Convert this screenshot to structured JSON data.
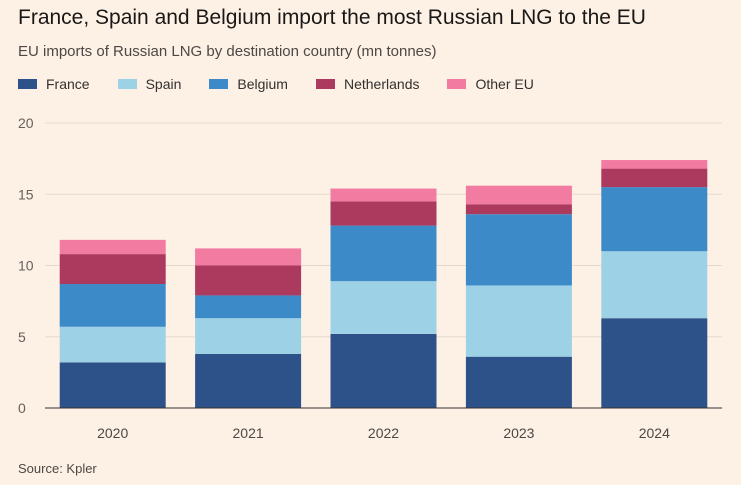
{
  "title": "France, Spain and Belgium import the most Russian LNG to the EU",
  "subtitle": "EU imports of Russian LNG by destination country (mn tonnes)",
  "source": "Source: Kpler",
  "chart_data": {
    "type": "bar",
    "stacked": true,
    "categories": [
      "2020",
      "2021",
      "2022",
      "2023",
      "2024"
    ],
    "series": [
      {
        "name": "France",
        "color": "#2d5289",
        "values": [
          3.2,
          3.8,
          5.2,
          3.6,
          6.3
        ]
      },
      {
        "name": "Spain",
        "color": "#9dd2e6",
        "values": [
          2.5,
          2.5,
          3.7,
          5.0,
          4.7
        ]
      },
      {
        "name": "Belgium",
        "color": "#3d8ac9",
        "values": [
          3.0,
          1.6,
          3.9,
          5.0,
          4.5
        ]
      },
      {
        "name": "Netherlands",
        "color": "#ac395e",
        "values": [
          2.1,
          2.1,
          1.7,
          0.7,
          1.3
        ]
      },
      {
        "name": "Other EU",
        "color": "#f27ba2",
        "values": [
          1.0,
          1.2,
          0.9,
          1.3,
          0.6
        ]
      }
    ],
    "ylim": [
      0,
      20
    ],
    "yticks": [
      "0",
      "5",
      "10",
      "15",
      "20"
    ],
    "grid": true,
    "legend": "top-left"
  }
}
